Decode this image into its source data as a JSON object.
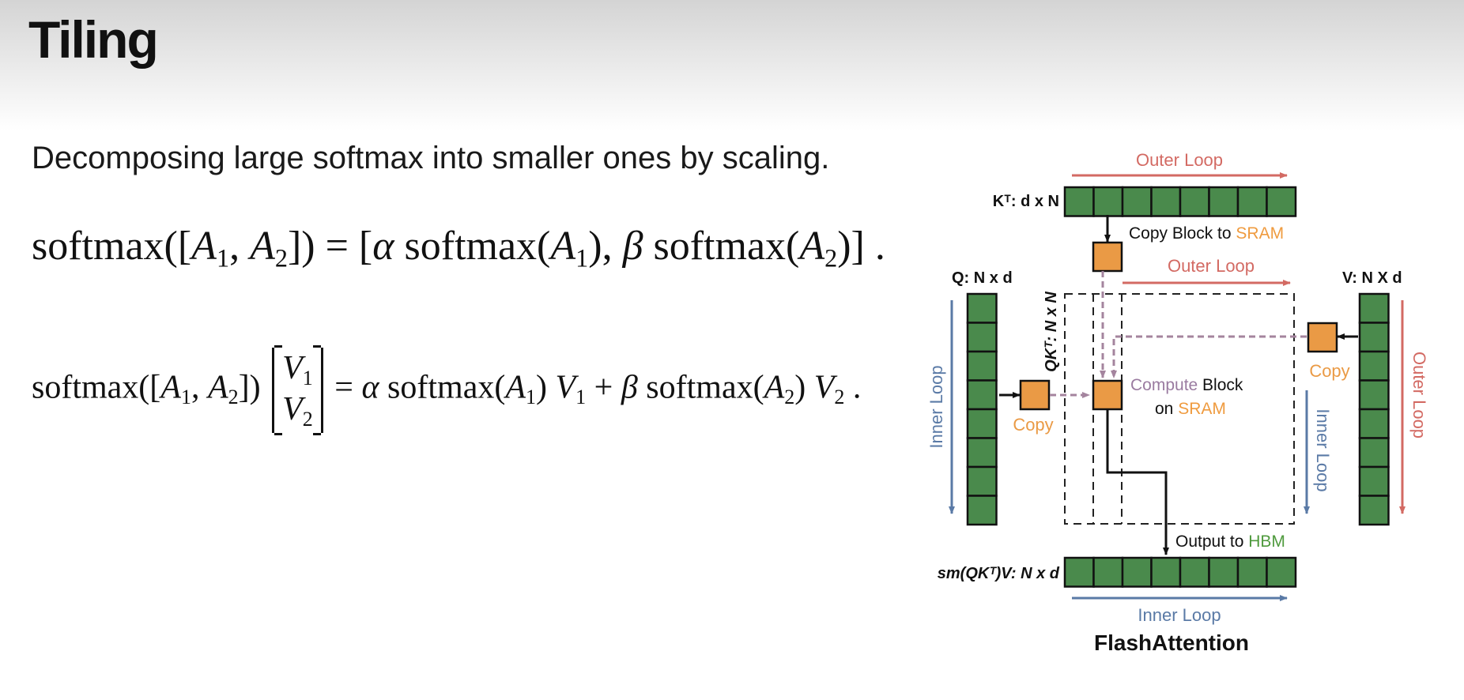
{
  "slide": {
    "title": "Tiling",
    "subtitle": "Decomposing large softmax into smaller ones by scaling."
  },
  "equations": {
    "eq1": {
      "lhs_fn": "softmax([",
      "lhs_a1": "A",
      "sub1": "1",
      "comma": ", ",
      "lhs_a2": "A",
      "sub2": "2",
      "lhs_close": "]) = [",
      "alpha": "α",
      "mid1": " softmax(",
      "a1": "A",
      "s1": "1",
      "mid2": "),  ",
      "beta": "β",
      "mid3": " softmax(",
      "a2": "A",
      "s2": "2",
      "end": ")] ."
    },
    "eq2": {
      "lhs_fn": "softmax([",
      "a1": "A",
      "s1": "1",
      "comma": ", ",
      "a2": "A",
      "s2": "2",
      "lhs_close": "])",
      "v1": "V",
      "v1s": "1",
      "v2": "V",
      "v2s": "2",
      "eq": " = ",
      "alpha": "α",
      "sm1": " softmax(",
      "ra1": "A",
      "rs1": "1",
      "close1": ") ",
      "rv1": "V",
      "rv1s": "1",
      "plus": " + ",
      "beta": "β",
      "sm2": " softmax(",
      "ra2": "A",
      "rs2": "2",
      "close2": ") ",
      "rv2": "V",
      "rv2s": "2",
      "end": " ."
    }
  },
  "diagram": {
    "caption": "FlashAttention",
    "outer_loop_top": "Outer Loop",
    "outer_loop_mid": "Outer Loop",
    "outer_loop_right": "Outer Loop",
    "inner_loop_left": "Inner Loop",
    "inner_loop_right": "Inner Loop",
    "inner_loop_bottom": "Inner Loop",
    "kt_label": "Kᵀ: d x N",
    "q_label": "Q: N x d",
    "v_label": "V: N X d",
    "qkt_label": "QKᵀ: N x N",
    "out_label": "sm(QKᵀ)V: N x d",
    "copy_block_text": "Copy Block to ",
    "sram_1": "SRAM",
    "compute_text": "Compute",
    "block_text": " Block",
    "on_text": "on ",
    "sram_2": "SRAM",
    "copy_left": "Copy",
    "copy_right": "Copy",
    "output_text": "Output to ",
    "hbm": "HBM",
    "colors": {
      "outer_loop": "#d36a63",
      "inner_loop": "#5a7aa6",
      "block_green": "#4a8a4c",
      "copy_orange": "#ea9a45",
      "sram_orange": "#ef9b3f",
      "compute_purple": "#9a7ba0",
      "hbm_green": "#4f9a3d"
    }
  }
}
